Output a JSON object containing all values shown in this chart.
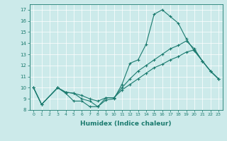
{
  "xlabel": "Humidex (Indice chaleur)",
  "bg_color": "#cceaea",
  "line_color": "#1a7a6e",
  "xlim": [
    -0.5,
    23.5
  ],
  "ylim": [
    8,
    17.5
  ],
  "xticks": [
    0,
    1,
    2,
    3,
    4,
    5,
    6,
    7,
    8,
    9,
    10,
    11,
    12,
    13,
    14,
    15,
    16,
    17,
    18,
    19,
    20,
    21,
    22,
    23
  ],
  "yticks": [
    8,
    9,
    10,
    11,
    12,
    13,
    14,
    15,
    16,
    17
  ],
  "line1_x": [
    0,
    1,
    3,
    4,
    5,
    6,
    7,
    8,
    9,
    10,
    11,
    12,
    13,
    14,
    15,
    16,
    17,
    18,
    19,
    20,
    21,
    22,
    23
  ],
  "line1_y": [
    10.0,
    8.5,
    10.0,
    9.5,
    8.8,
    8.8,
    8.3,
    8.3,
    8.9,
    9.0,
    10.3,
    12.2,
    12.5,
    13.9,
    16.6,
    17.0,
    16.4,
    15.8,
    14.4,
    13.3,
    12.4,
    11.5,
    10.8
  ],
  "line2_x": [
    0,
    1,
    3,
    4,
    5,
    6,
    7,
    8,
    9,
    10,
    11,
    12,
    13,
    14,
    15,
    16,
    17,
    18,
    19,
    20,
    21,
    22,
    23
  ],
  "line2_y": [
    10.0,
    8.5,
    10.0,
    9.6,
    9.5,
    9.0,
    8.8,
    8.3,
    9.1,
    9.1,
    10.0,
    10.8,
    11.5,
    12.0,
    12.5,
    13.0,
    13.5,
    13.8,
    14.2,
    13.5,
    12.4,
    11.5,
    10.8
  ],
  "line3_x": [
    0,
    1,
    3,
    4,
    5,
    6,
    7,
    8,
    9,
    10,
    11,
    12,
    13,
    14,
    15,
    16,
    17,
    18,
    19,
    20,
    21,
    22,
    23
  ],
  "line3_y": [
    10.0,
    8.5,
    10.0,
    9.6,
    9.5,
    9.3,
    9.0,
    8.8,
    9.1,
    9.1,
    9.8,
    10.3,
    10.8,
    11.3,
    11.8,
    12.1,
    12.5,
    12.8,
    13.2,
    13.4,
    12.4,
    11.5,
    10.8
  ]
}
